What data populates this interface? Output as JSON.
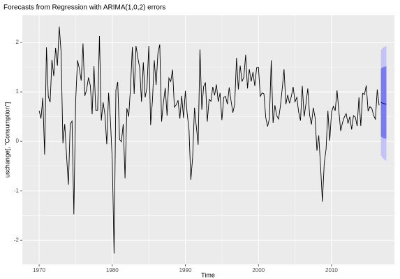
{
  "chart_data": {
    "type": "line",
    "title": "Forecasts from Regression with ARIMA(1,0,2) errors",
    "xlabel": "Time",
    "ylabel": "uschange[, \"Consumption\"]",
    "x": [
      1970,
      1970.25,
      1970.5,
      1970.75,
      1971,
      1971.25,
      1971.5,
      1971.75,
      1972,
      1972.25,
      1972.5,
      1972.75,
      1973,
      1973.25,
      1973.5,
      1973.75,
      1974,
      1974.25,
      1974.5,
      1974.75,
      1975,
      1975.25,
      1975.5,
      1975.75,
      1976,
      1976.25,
      1976.5,
      1976.75,
      1977,
      1977.25,
      1977.5,
      1977.75,
      1978,
      1978.25,
      1978.5,
      1978.75,
      1979,
      1979.25,
      1979.5,
      1979.75,
      1980,
      1980.25,
      1980.5,
      1980.75,
      1981,
      1981.25,
      1981.5,
      1981.75,
      1982,
      1982.25,
      1982.5,
      1982.75,
      1983,
      1983.25,
      1983.5,
      1983.75,
      1984,
      1984.25,
      1984.5,
      1984.75,
      1985,
      1985.25,
      1985.5,
      1985.75,
      1986,
      1986.25,
      1986.5,
      1986.75,
      1987,
      1987.25,
      1987.5,
      1987.75,
      1988,
      1988.25,
      1988.5,
      1988.75,
      1989,
      1989.25,
      1989.5,
      1989.75,
      1990,
      1990.25,
      1990.5,
      1990.75,
      1991,
      1991.25,
      1991.5,
      1991.75,
      1992,
      1992.25,
      1992.5,
      1992.75,
      1993,
      1993.25,
      1993.5,
      1993.75,
      1994,
      1994.25,
      1994.5,
      1994.75,
      1995,
      1995.25,
      1995.5,
      1995.75,
      1996,
      1996.25,
      1996.5,
      1996.75,
      1997,
      1997.25,
      1997.5,
      1997.75,
      1998,
      1998.25,
      1998.5,
      1998.75,
      1999,
      1999.25,
      1999.5,
      1999.75,
      2000,
      2000.25,
      2000.5,
      2000.75,
      2001,
      2001.25,
      2001.5,
      2001.75,
      2002,
      2002.25,
      2002.5,
      2002.75,
      2003,
      2003.25,
      2003.5,
      2003.75,
      2004,
      2004.25,
      2004.5,
      2004.75,
      2005,
      2005.25,
      2005.5,
      2005.75,
      2006,
      2006.25,
      2006.5,
      2006.75,
      2007,
      2007.25,
      2007.5,
      2007.75,
      2008,
      2008.25,
      2008.5,
      2008.75,
      2009,
      2009.25,
      2009.5,
      2009.75,
      2010,
      2010.25,
      2010.5,
      2010.75,
      2011,
      2011.25,
      2011.5,
      2011.75,
      2012,
      2012.25,
      2012.5,
      2012.75,
      2013,
      2013.25,
      2013.5,
      2013.75,
      2014,
      2014.25,
      2014.5,
      2014.75,
      2015,
      2015.25,
      2015.5,
      2015.75,
      2016,
      2016.25,
      2016.5
    ],
    "values": [
      0.62,
      0.46,
      0.88,
      -0.27,
      1.9,
      0.91,
      0.79,
      1.65,
      1.32,
      1.89,
      1.53,
      2.32,
      1.81,
      -0.04,
      0.35,
      -0.29,
      -0.88,
      0.35,
      0.41,
      -1.48,
      0.84,
      1.64,
      1.47,
      1.23,
      1.98,
      0.92,
      1.05,
      1.29,
      1.13,
      0.55,
      1.52,
      0.63,
      0.63,
      2.13,
      0.42,
      0.79,
      0.54,
      -0.06,
      0.98,
      0.43,
      -0.37,
      -2.27,
      1.04,
      1.2,
      0.04,
      -0.01,
      0.35,
      -0.75,
      0.67,
      0.5,
      1.1,
      1.91,
      0.96,
      1.93,
      1.69,
      1.49,
      0.8,
      1.6,
      0.89,
      1.09,
      1.93,
      0.33,
      0.83,
      1.64,
      1.14,
      1.79,
      1.96,
      0.4,
      0.78,
      1.08,
      0.52,
      1.28,
      1.21,
      1.45,
      0.69,
      0.74,
      0.83,
      0.46,
      0.92,
      0.47,
      1.02,
      0.56,
      0.24,
      -0.78,
      -0.32,
      0.68,
      0.3,
      -0.07,
      1.86,
      0.64,
      1.11,
      1.19,
      0.4,
      0.85,
      0.81,
      1.1,
      0.93,
      1.15,
      0.8,
      0.98,
      0.43,
      0.89,
      0.91,
      0.75,
      1.09,
      0.82,
      0.58,
      0.75,
      1.69,
      1.05,
      1.53,
      1.21,
      1.3,
      1.75,
      1.07,
      1.46,
      1.21,
      1.4,
      1.12,
      1.49,
      1.5,
      0.91,
      0.98,
      0.96,
      0.48,
      0.3,
      0.46,
      1.64,
      0.37,
      0.73,
      0.52,
      0.45,
      0.71,
      1.06,
      1.46,
      0.75,
      0.94,
      0.77,
      0.91,
      1.1,
      0.8,
      0.89,
      0.59,
      0.42,
      1.12,
      0.5,
      0.76,
      1.07,
      0.53,
      0.34,
      0.68,
      0.48,
      -0.19,
      0.12,
      -0.52,
      -1.22,
      -0.44,
      -0.16,
      0.62,
      0.01,
      0.59,
      0.71,
      0.62,
      1.03,
      0.61,
      0.21,
      0.38,
      0.49,
      0.56,
      0.36,
      0.5,
      0.24,
      0.52,
      0.49,
      0.31,
      0.89,
      0.31,
      0.97,
      0.95,
      1.13,
      0.61,
      0.7,
      0.67,
      0.53,
      0.44,
      1.05,
      0.73
    ],
    "color": "#000000",
    "forecast": {
      "x": [
        2016.75,
        2017,
        2017.25,
        2017.5
      ],
      "mean": [
        0.79,
        0.77,
        0.76,
        0.75
      ],
      "lo80": [
        0.1,
        0.07,
        0.06,
        0.05
      ],
      "hi80": [
        1.47,
        1.5,
        1.51,
        1.52
      ],
      "lo95": [
        -0.28,
        -0.34,
        -0.37,
        -0.4
      ],
      "hi95": [
        1.85,
        1.89,
        1.91,
        1.93
      ],
      "mean_color": "#00008b",
      "color80": "#7b7bf0",
      "color95": "#c3c3f5"
    },
    "xlim": [
      1967.7,
      2018.6
    ],
    "ylim": [
      -2.49,
      2.55
    ],
    "xticks": [
      1970,
      1980,
      1990,
      2000,
      2010
    ],
    "yticks": [
      -2,
      -1,
      0,
      1,
      2
    ],
    "grid": true
  }
}
